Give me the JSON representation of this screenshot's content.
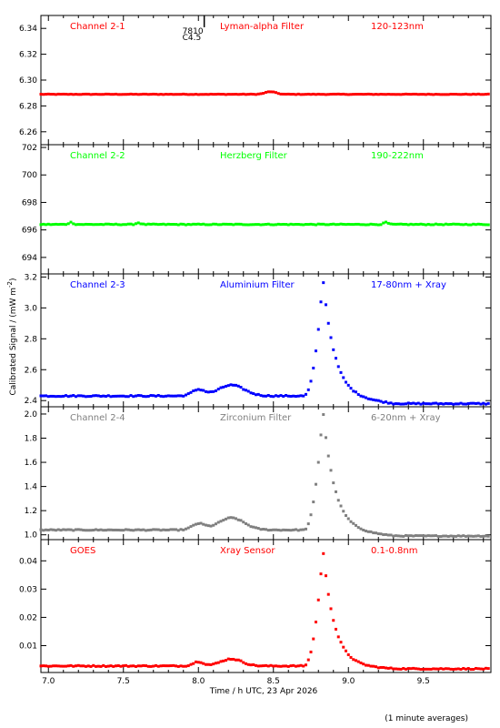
{
  "footnote": "(1 minute averages)",
  "y_axis_title": "Calibrated Signal / (mW m",
  "y_axis_title_exp": "-2",
  "y_axis_title_end": ")",
  "chart_data": [
    {
      "type": "scatter",
      "panel": "channel-2-1",
      "labels": [
        "Channel 2-1",
        "Lyman-alpha Filter",
        "120-123nm"
      ],
      "color": "#ff0000",
      "xlim": [
        6.95,
        9.95
      ],
      "ylim": [
        6.25,
        6.35
      ],
      "yticks": [
        6.26,
        6.28,
        6.3,
        6.32,
        6.34
      ],
      "ytick_labels": [
        "6.26",
        "6.28",
        "6.30",
        "6.32",
        "6.34"
      ],
      "profile": {
        "base": 6.289,
        "amp": 0,
        "bumps": [
          [
            8.48,
            0.002,
            0.05
          ]
        ],
        "noise": 0.0002
      },
      "annotation": {
        "x": 7.96,
        "lines": [
          "7810",
          "C4.5"
        ]
      }
    },
    {
      "type": "scatter",
      "panel": "channel-2-2",
      "labels": [
        "Channel 2-2",
        "Herzberg Filter",
        "190-222nm"
      ],
      "color": "#00ff00",
      "xlim": [
        6.95,
        9.95
      ],
      "ylim": [
        692.8,
        702.2
      ],
      "yticks": [
        694,
        696,
        698,
        700,
        702
      ],
      "ytick_labels": [
        "694",
        "696",
        "698",
        "700",
        "702"
      ],
      "profile": {
        "base": 696.4,
        "amp": 0,
        "bumps": [
          [
            7.15,
            0.15,
            0.02
          ],
          [
            7.6,
            0.12,
            0.02
          ],
          [
            9.25,
            0.15,
            0.02
          ]
        ],
        "noise": 0.03
      }
    },
    {
      "type": "scatter",
      "panel": "channel-2-3",
      "labels": [
        "Channel 2-3",
        "Aluminium Filter",
        "17-80nm + Xray"
      ],
      "color": "#0000ff",
      "xlim": [
        6.95,
        9.95
      ],
      "ylim": [
        2.36,
        3.22
      ],
      "yticks": [
        2.4,
        2.6,
        2.8,
        3.0,
        3.2
      ],
      "ytick_labels": [
        "2.4",
        "2.6",
        "2.8",
        "3.0",
        "3.2"
      ],
      "profile": {
        "base": 2.43,
        "base_end": 2.38,
        "amp": 0.77,
        "bumps": [
          [
            8.0,
            0.04,
            0.06
          ],
          [
            8.22,
            0.07,
            0.12
          ]
        ],
        "noise": 0.004
      }
    },
    {
      "type": "scatter",
      "panel": "channel-2-4",
      "labels": [
        "Channel 2-4",
        "Zirconium Filter",
        "6-20nm + Xray"
      ],
      "color": "#808080",
      "xlim": [
        6.95,
        9.95
      ],
      "ylim": [
        0.96,
        2.06
      ],
      "yticks": [
        1.0,
        1.2,
        1.4,
        1.6,
        1.8,
        2.0
      ],
      "ytick_labels": [
        "1.0",
        "1.2",
        "1.4",
        "1.6",
        "1.8",
        "2.0"
      ],
      "profile": {
        "base": 1.04,
        "base_end": 0.99,
        "amp": 1.0,
        "bumps": [
          [
            8.0,
            0.05,
            0.06
          ],
          [
            8.22,
            0.1,
            0.12
          ]
        ],
        "noise": 0.004
      }
    },
    {
      "type": "scatter",
      "panel": "goes",
      "labels": [
        "GOES",
        "Xray Sensor",
        "0.1-0.8nm"
      ],
      "color": "#ff0000",
      "xlim": [
        6.95,
        9.95
      ],
      "ylim": [
        0.0005,
        0.0475
      ],
      "yticks": [
        0.01,
        0.02,
        0.03,
        0.04
      ],
      "ytick_labels": [
        "0.01",
        "0.02",
        "0.03",
        "0.04"
      ],
      "profile": {
        "base": 0.0028,
        "base_end": 0.0018,
        "amp": 0.0415,
        "bumps": [
          [
            8.0,
            0.0015,
            0.05
          ],
          [
            8.22,
            0.0025,
            0.1
          ]
        ],
        "noise": 0.0002
      },
      "xticks": [
        7.0,
        7.5,
        8.0,
        8.5,
        9.0,
        9.5
      ],
      "xtick_labels": [
        "7.0",
        "7.5",
        "8.0",
        "8.5",
        "9.0",
        "9.5"
      ],
      "xlabel": "Time / h UTC, 23 Apr 2026"
    }
  ]
}
